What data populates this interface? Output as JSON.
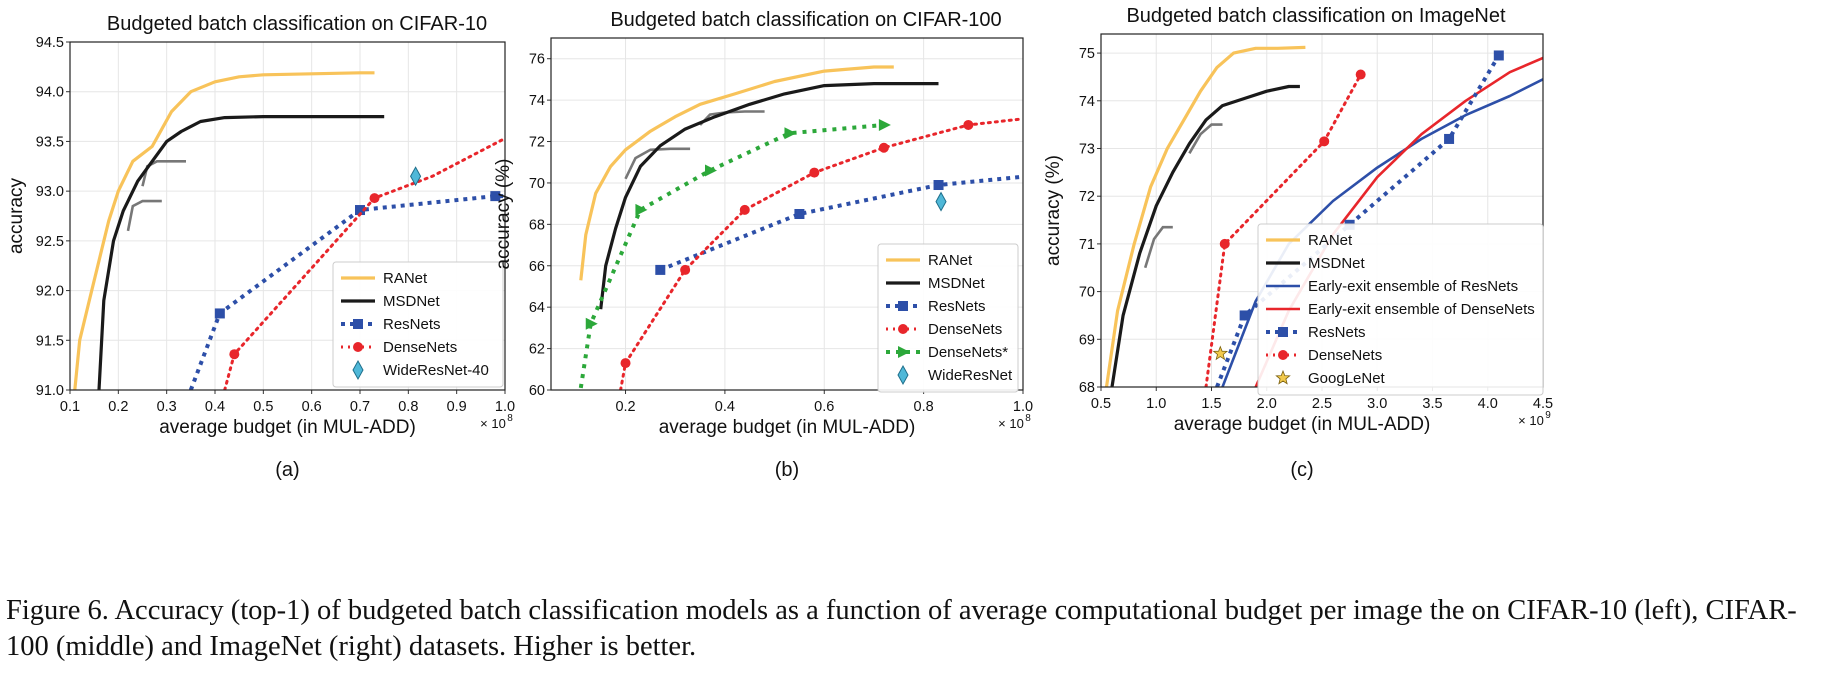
{
  "figure": {
    "caption": "Figure 6. Accuracy (top-1) of budgeted batch classification models as a function of average computational budget per image the on CIFAR-10 (left), CIFAR-100 (middle) and ImageNet (right) datasets. Higher is better.",
    "colors": {
      "RANet": "#f8c35a",
      "MSDNet": "#1a1a1a",
      "ResNets": "#2d4fa8",
      "DenseNets": "#e8262b",
      "DenseNetsStar": "#2ca83a",
      "Wide": "#4fb8d8",
      "ensembleResNets": "#2d4fa8",
      "ensembleDenseNets": "#e8262b",
      "GoogLeNet": "#f2c94c",
      "grid": "#e6e6e6"
    }
  },
  "chart_data": [
    {
      "type": "line",
      "panel_label": "(a)",
      "title": "Budgeted batch classification on CIFAR-10",
      "xlabel": "average budget (in MUL-ADD)",
      "ylabel": "accuracy",
      "x_multiplier": "× 10^8",
      "x_multiplier_base": "× 10",
      "x_multiplier_exp": "8",
      "xlim": [
        0.1,
        1.0
      ],
      "ylim": [
        91.0,
        94.5
      ],
      "xticks": [
        0.1,
        0.2,
        0.3,
        0.4,
        0.5,
        0.6,
        0.7,
        0.8,
        0.9,
        1.0
      ],
      "xtick_labels": [
        "0.1",
        "0.2",
        "0.3",
        "0.4",
        "0.5",
        "0.6",
        "0.7",
        "0.8",
        "0.9",
        "1.0"
      ],
      "yticks": [
        91.0,
        91.5,
        92.0,
        92.5,
        93.0,
        93.5,
        94.0,
        94.5
      ],
      "ytick_labels": [
        "91.0",
        "91.5",
        "92.0",
        "92.5",
        "93.0",
        "93.5",
        "94.0",
        "94.5"
      ],
      "grid": true,
      "legend_position": "bottom-right",
      "series": [
        {
          "name": "RANet",
          "style": "RANet",
          "x": [
            0.11,
            0.12,
            0.14,
            0.16,
            0.18,
            0.2,
            0.23,
            0.27,
            0.31,
            0.35,
            0.4,
            0.45,
            0.5,
            0.6,
            0.7,
            0.73
          ],
          "y": [
            91.0,
            91.5,
            91.9,
            92.3,
            92.7,
            93.0,
            93.3,
            93.45,
            93.8,
            94.0,
            94.1,
            94.15,
            94.17,
            94.18,
            94.19,
            94.19
          ]
        },
        {
          "name": "MSDNet",
          "style": "MSDNet",
          "x": [
            0.16,
            0.17,
            0.19,
            0.21,
            0.24,
            0.27,
            0.3,
            0.33,
            0.37,
            0.42,
            0.5,
            0.6,
            0.7,
            0.75
          ],
          "y": [
            91.0,
            91.9,
            92.5,
            92.8,
            93.1,
            93.3,
            93.5,
            93.6,
            93.7,
            93.74,
            93.75,
            93.75,
            93.75,
            93.75
          ]
        },
        {
          "name": "ResNets",
          "style": "ResNets",
          "x": [
            0.35,
            0.41,
            0.7,
            0.98,
            1.0
          ],
          "y": [
            91.0,
            91.77,
            92.81,
            92.95,
            92.95
          ],
          "markers": [
            [
              0.41,
              91.77
            ],
            [
              0.7,
              92.81
            ],
            [
              0.98,
              92.95
            ]
          ]
        },
        {
          "name": "DenseNets",
          "style": "DenseNets",
          "x": [
            0.42,
            0.44,
            0.73,
            0.85,
            1.0
          ],
          "y": [
            91.0,
            91.36,
            92.93,
            93.15,
            93.53
          ],
          "markers": [
            [
              0.44,
              91.36
            ],
            [
              0.73,
              92.93
            ]
          ]
        },
        {
          "name": "WideResNet-40",
          "style": "Wide",
          "points": [
            [
              0.815,
              93.15
            ]
          ]
        }
      ],
      "gray_segments": [
        {
          "x": [
            0.22,
            0.23,
            0.25,
            0.27,
            0.29
          ],
          "y": [
            92.6,
            92.85,
            92.9,
            92.9,
            92.9
          ]
        },
        {
          "x": [
            0.25,
            0.26,
            0.28,
            0.31,
            0.34
          ],
          "y": [
            93.05,
            93.25,
            93.3,
            93.3,
            93.3
          ]
        }
      ]
    },
    {
      "type": "line",
      "panel_label": "(b)",
      "title": "Budgeted batch classification on CIFAR-100",
      "xlabel": "average budget (in MUL-ADD)",
      "ylabel": "accuracy (%)",
      "x_multiplier": "× 10^8",
      "x_multiplier_base": "× 10",
      "x_multiplier_exp": "8",
      "xlim": [
        0.05,
        1.0
      ],
      "ylim": [
        60,
        77
      ],
      "xticks": [
        0.2,
        0.4,
        0.6,
        0.8,
        1.0
      ],
      "xtick_labels": [
        "0.2",
        "0.4",
        "0.6",
        "0.8",
        "1.0"
      ],
      "yticks": [
        60,
        62,
        64,
        66,
        68,
        70,
        72,
        74,
        76
      ],
      "ytick_labels": [
        "60",
        "62",
        "64",
        "66",
        "68",
        "70",
        "72",
        "74",
        "76"
      ],
      "grid": true,
      "legend_position": "bottom-right",
      "series": [
        {
          "name": "RANet",
          "style": "RANet",
          "x": [
            0.11,
            0.12,
            0.14,
            0.17,
            0.2,
            0.25,
            0.3,
            0.35,
            0.42,
            0.5,
            0.6,
            0.7,
            0.74
          ],
          "y": [
            65.3,
            67.5,
            69.5,
            70.8,
            71.6,
            72.5,
            73.2,
            73.8,
            74.3,
            74.9,
            75.4,
            75.6,
            75.6
          ]
        },
        {
          "name": "MSDNet",
          "style": "MSDNet",
          "x": [
            0.15,
            0.16,
            0.18,
            0.2,
            0.23,
            0.27,
            0.32,
            0.38,
            0.45,
            0.52,
            0.6,
            0.7,
            0.8,
            0.83
          ],
          "y": [
            63.9,
            66.0,
            67.8,
            69.3,
            70.8,
            71.8,
            72.6,
            73.2,
            73.8,
            74.3,
            74.7,
            74.8,
            74.8,
            74.8
          ]
        },
        {
          "name": "ResNets",
          "style": "ResNets",
          "x": [
            0.27,
            0.55,
            0.83,
            1.0
          ],
          "y": [
            65.8,
            68.5,
            69.9,
            70.3
          ],
          "markers": [
            [
              0.27,
              65.8
            ],
            [
              0.55,
              68.5
            ],
            [
              0.83,
              69.9
            ]
          ]
        },
        {
          "name": "DenseNets",
          "style": "DenseNets",
          "x": [
            0.19,
            0.2,
            0.32,
            0.44,
            0.58,
            0.72,
            0.89,
            1.0
          ],
          "y": [
            60.0,
            61.3,
            65.8,
            68.7,
            70.5,
            71.7,
            72.8,
            73.1
          ],
          "markers": [
            [
              0.2,
              61.3
            ],
            [
              0.32,
              65.8
            ],
            [
              0.44,
              68.7
            ],
            [
              0.58,
              70.5
            ],
            [
              0.72,
              71.7
            ],
            [
              0.89,
              72.8
            ]
          ]
        },
        {
          "name": "DenseNets*",
          "style": "DenseNetsStar",
          "x": [
            0.11,
            0.13,
            0.23,
            0.37,
            0.53,
            0.72
          ],
          "y": [
            60.1,
            63.2,
            68.7,
            70.6,
            72.4,
            72.8
          ],
          "markers": [
            [
              0.13,
              63.2
            ],
            [
              0.23,
              68.7
            ],
            [
              0.37,
              70.6
            ],
            [
              0.53,
              72.4
            ],
            [
              0.72,
              72.8
            ]
          ]
        },
        {
          "name": "WideResNet",
          "style": "Wide",
          "points": [
            [
              0.835,
              69.1
            ]
          ]
        }
      ],
      "gray_segments": [
        {
          "x": [
            0.2,
            0.22,
            0.25,
            0.29,
            0.33
          ],
          "y": [
            70.2,
            71.2,
            71.6,
            71.65,
            71.65
          ]
        },
        {
          "x": [
            0.35,
            0.37,
            0.4,
            0.44,
            0.48
          ],
          "y": [
            72.8,
            73.3,
            73.4,
            73.45,
            73.45
          ]
        }
      ]
    },
    {
      "type": "line",
      "panel_label": "(c)",
      "title": "Budgeted batch classification on ImageNet",
      "xlabel": "average budget (in MUL-ADD)",
      "ylabel": "accuracy (%)",
      "x_multiplier": "× 10^9",
      "x_multiplier_base": "× 10",
      "x_multiplier_exp": "9",
      "xlim": [
        0.5,
        4.5
      ],
      "ylim": [
        68,
        75.4
      ],
      "xticks": [
        0.5,
        1.0,
        1.5,
        2.0,
        2.5,
        3.0,
        3.5,
        4.0,
        4.5
      ],
      "xtick_labels": [
        "0.5",
        "1.0",
        "1.5",
        "2.0",
        "2.5",
        "3.0",
        "3.5",
        "4.0",
        "4.5"
      ],
      "yticks": [
        68,
        69,
        70,
        71,
        72,
        73,
        74,
        75
      ],
      "ytick_labels": [
        "68",
        "69",
        "70",
        "71",
        "72",
        "73",
        "74",
        "75"
      ],
      "grid": true,
      "legend_position": "bottom-right",
      "series": [
        {
          "name": "RANet",
          "style": "RANet",
          "x": [
            0.55,
            0.65,
            0.8,
            0.95,
            1.1,
            1.25,
            1.4,
            1.55,
            1.7,
            1.9,
            2.1,
            2.35
          ],
          "y": [
            68.0,
            69.6,
            71.0,
            72.2,
            73.0,
            73.6,
            74.2,
            74.7,
            75.0,
            75.1,
            75.1,
            75.12
          ]
        },
        {
          "name": "MSDNet",
          "style": "MSDNet",
          "x": [
            0.6,
            0.7,
            0.85,
            1.0,
            1.15,
            1.3,
            1.45,
            1.6,
            1.8,
            2.0,
            2.2,
            2.3
          ],
          "y": [
            68.0,
            69.5,
            70.8,
            71.8,
            72.5,
            73.1,
            73.6,
            73.9,
            74.05,
            74.2,
            74.3,
            74.3
          ]
        },
        {
          "name": "Early-exit ensemble of ResNets",
          "style": "ensembleResNets",
          "x": [
            1.6,
            1.9,
            2.2,
            2.6,
            3.0,
            3.4,
            3.8,
            4.2,
            4.5
          ],
          "y": [
            68.0,
            69.8,
            71.0,
            71.9,
            72.6,
            73.2,
            73.7,
            74.1,
            74.45
          ]
        },
        {
          "name": "Early-exit ensemble of DenseNets",
          "style": "ensembleDenseNets",
          "x": [
            1.9,
            2.2,
            2.6,
            3.0,
            3.4,
            3.8,
            4.2,
            4.5
          ],
          "y": [
            68.0,
            69.6,
            71.2,
            72.4,
            73.3,
            74.0,
            74.6,
            74.9
          ]
        },
        {
          "name": "ResNets",
          "style": "ResNets",
          "x": [
            1.55,
            1.8,
            2.75,
            3.65,
            4.1
          ],
          "y": [
            68.0,
            69.5,
            71.4,
            73.2,
            74.95
          ],
          "markers": [
            [
              1.8,
              69.5
            ],
            [
              2.75,
              71.4
            ],
            [
              3.65,
              73.2
            ],
            [
              4.1,
              74.95
            ]
          ]
        },
        {
          "name": "DenseNets",
          "style": "DenseNets",
          "x": [
            1.45,
            1.62,
            2.52,
            2.85
          ],
          "y": [
            68.0,
            71.0,
            73.15,
            74.55
          ],
          "markers": [
            [
              1.62,
              71.0
            ],
            [
              2.52,
              73.15
            ],
            [
              2.85,
              74.55
            ]
          ]
        },
        {
          "name": "GoogLeNet",
          "style": "GoogLeNet",
          "points": [
            [
              1.58,
              68.7
            ]
          ]
        }
      ],
      "gray_segments": [
        {
          "x": [
            0.9,
            0.98,
            1.06,
            1.15
          ],
          "y": [
            70.5,
            71.1,
            71.35,
            71.35
          ]
        },
        {
          "x": [
            1.3,
            1.4,
            1.5,
            1.6
          ],
          "y": [
            72.9,
            73.3,
            73.5,
            73.5
          ]
        }
      ]
    }
  ]
}
